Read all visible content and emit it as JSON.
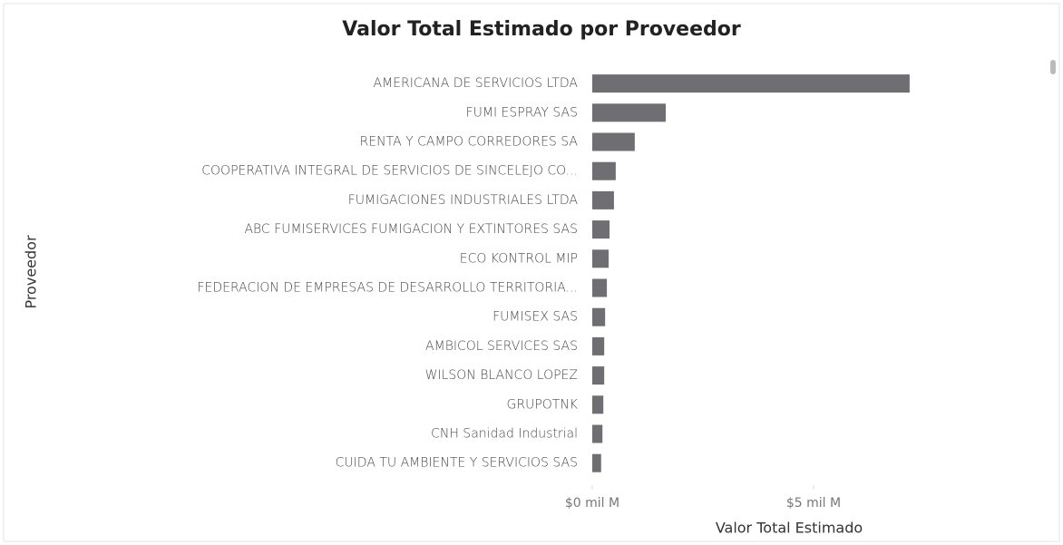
{
  "chart_data": {
    "type": "hbar",
    "title": "Valor Total Estimado por Proveedor",
    "x_label": "Valor Total Estimado",
    "y_label": "Proveedor",
    "categories": [
      "AMERICANA DE SERVICIOS LTDA",
      "FUMI ESPRAY SAS",
      "RENTA Y CAMPO CORREDORES SA",
      "COOPERATIVA INTEGRAL DE SERVICIOS DE SINCELEJO CO...",
      "FUMIGACIONES INDUSTRIALES LTDA",
      "ABC FUMISERVICES FUMIGACION Y EXTINTORES SAS",
      "ECO KONTROL MIP",
      "FEDERACION DE EMPRESAS DE DESARROLLO TERRITORIA...",
      "FUMISEX SAS",
      "AMBICOL SERVICES SAS",
      "WILSON BLANCO LOPEZ",
      "GRUPOTNK",
      "CNH Sanidad Industrial",
      "CUIDA TU AMBIENTE Y SERVICIOS SAS"
    ],
    "values": [
      7.17,
      1.66,
      0.96,
      0.53,
      0.49,
      0.39,
      0.37,
      0.33,
      0.29,
      0.27,
      0.27,
      0.25,
      0.23,
      0.2
    ],
    "color": "#6e6e73",
    "xlim": [
      0,
      7.5
    ],
    "xticks": [
      {
        "value": 0,
        "label": "$0 mil M"
      },
      {
        "value": 5,
        "label": "$5 mil M"
      }
    ]
  }
}
